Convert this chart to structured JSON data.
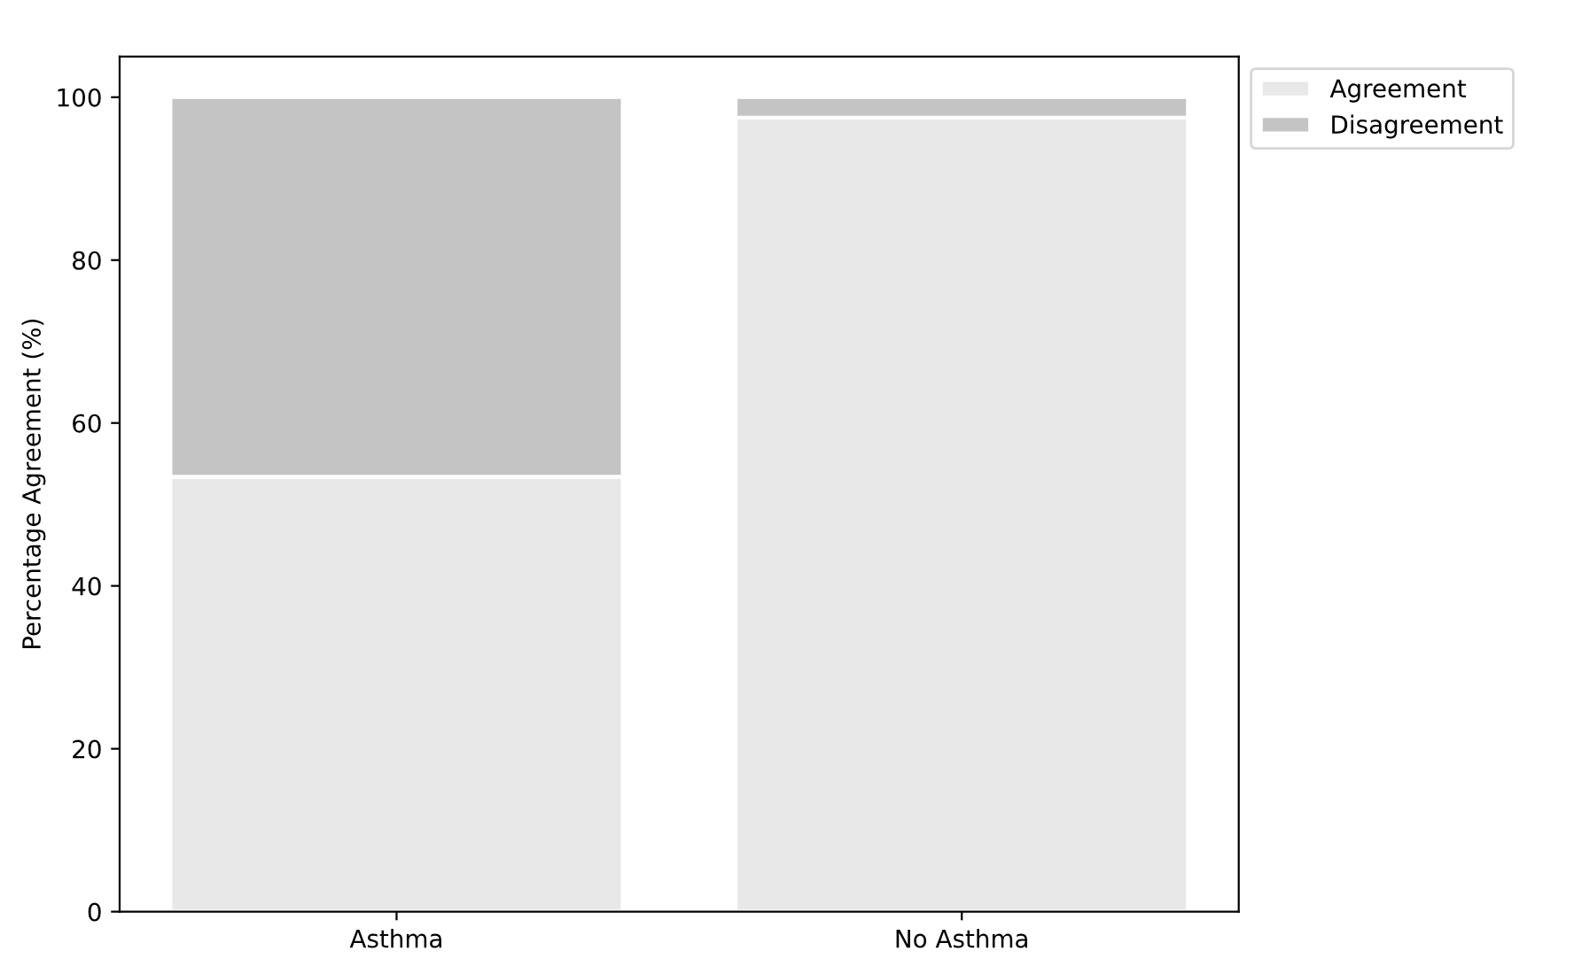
{
  "chart_data": {
    "type": "bar",
    "stacked": true,
    "ylabel": "Percentage Agreement (%)",
    "categories": [
      "Asthma",
      "No Asthma"
    ],
    "series": [
      {
        "name": "Agreement",
        "color": "#e8e8e8",
        "values": [
          53.4,
          97.5
        ]
      },
      {
        "name": "Disagreement",
        "color": "#c4c4c4",
        "values": [
          46.6,
          2.5
        ]
      }
    ],
    "ylim": [
      0,
      105
    ],
    "yticks": [
      0,
      20,
      40,
      60,
      80,
      100
    ],
    "grid": false,
    "legend": "top right"
  }
}
